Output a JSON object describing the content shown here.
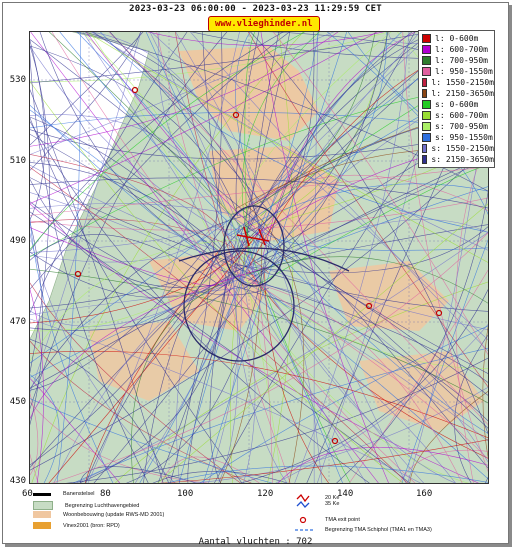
{
  "header": {
    "title": "2023-03-23 06:00:00 - 2023-03-23 11:29:59 CET",
    "url_badge": "www.vlieghinder.nl"
  },
  "axes": {
    "y_ticks": [
      "530",
      "510",
      "490",
      "470",
      "450",
      "430"
    ],
    "x_ticks": [
      "80",
      "100",
      "120",
      "140",
      "160"
    ]
  },
  "legend": {
    "items": [
      {
        "label": "l: 0-600m",
        "color": "#cc0000"
      },
      {
        "label": "l: 600-700m",
        "color": "#b000d0"
      },
      {
        "label": "l: 700-950m",
        "color": "#2e7d2e"
      },
      {
        "label": "l: 950-1550m",
        "color": "#e060a0"
      },
      {
        "label": "l: 1550-2150m",
        "color": "#c02040"
      },
      {
        "label": "l: 2150-3650m",
        "color": "#8b4513"
      },
      {
        "label": "s: 0-600m",
        "color": "#22cc22"
      },
      {
        "label": "s: 600-700m",
        "color": "#99dd33"
      },
      {
        "label": "s: 700-950m",
        "color": "#aaee66"
      },
      {
        "label": "s: 950-1550m",
        "color": "#3070e0"
      },
      {
        "label": "s: 1550-2150m",
        "color": "#7070cc"
      },
      {
        "label": "s: 2150-3650m",
        "color": "#303090"
      }
    ]
  },
  "bottom_legend": {
    "scale_label": "60",
    "runway": "Banenstelsel",
    "airport_boundary": "Begrenzing Luchthavengebied",
    "housing": "Woonbebouwing (update RWS-MD 2001)",
    "vinex": "Vinex2001 (bron: RPD)",
    "noise_1": "20 Ke",
    "noise_2": "35 Ke",
    "tma_exit": "TMA exit point",
    "tma_boundary": "Begrenzing TMA Schiphol  (TMA1 en TMA3)"
  },
  "footer": {
    "count": "Aantal vluchten : 702"
  },
  "colors": {
    "land": "#c7dcc4",
    "urban": "#f0c7a0",
    "frame": "#777777"
  }
}
